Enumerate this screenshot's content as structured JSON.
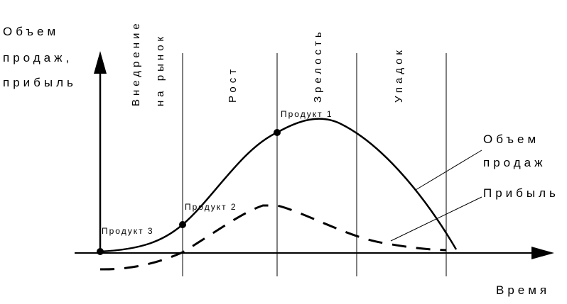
{
  "y_axis_label": [
    "Объем",
    "продаж,",
    "прибыль"
  ],
  "x_axis_label": "Время",
  "stages": [
    {
      "lines": [
        "Внедрение",
        "на рынок"
      ]
    },
    {
      "lines": [
        "Рост"
      ]
    },
    {
      "lines": [
        "Зрелость"
      ]
    },
    {
      "lines": [
        "Упадок"
      ]
    }
  ],
  "points": [
    "Продукт 1",
    "Продукт 2",
    "Продукт 3"
  ],
  "curves": [
    {
      "lines": [
        "Объем",
        "продаж"
      ]
    },
    {
      "lines": [
        "Прибыль"
      ]
    }
  ]
}
